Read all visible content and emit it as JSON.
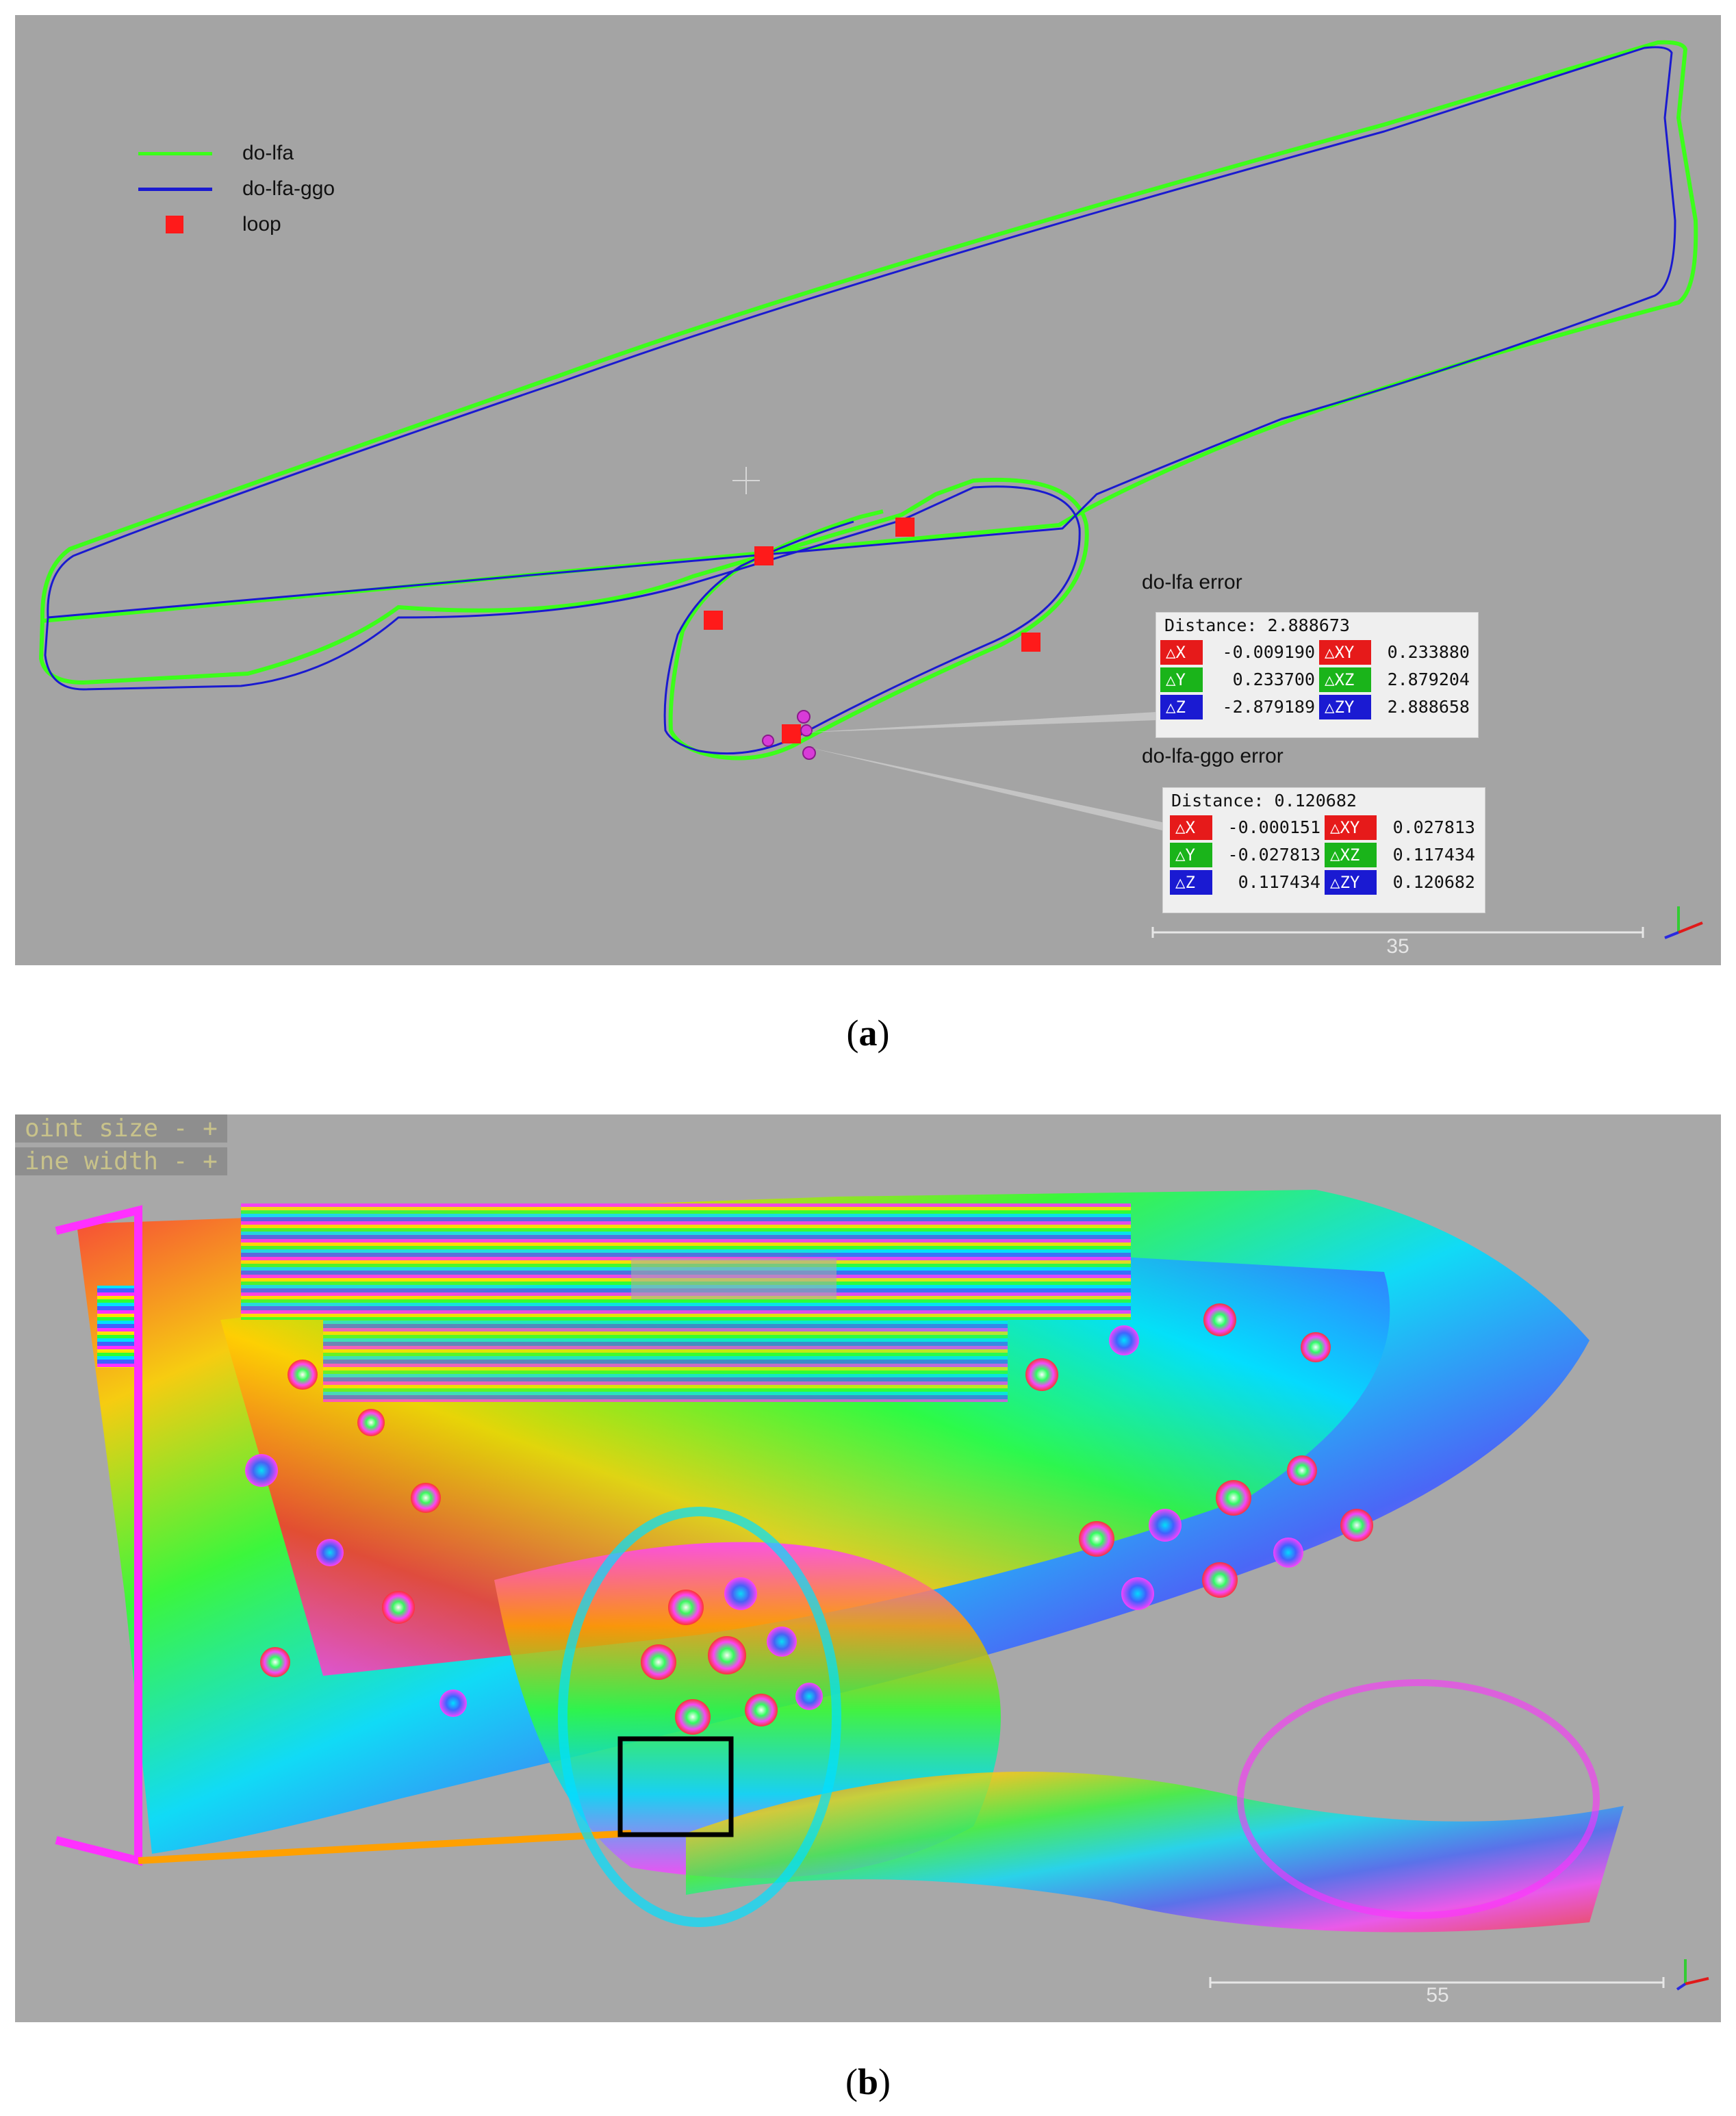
{
  "panel_a": {
    "legend": [
      {
        "label": "do-lfa",
        "color": "#3cff1a",
        "kind": "line"
      },
      {
        "label": "do-lfa-ggo",
        "color": "#1a1ad0",
        "kind": "line"
      },
      {
        "label": "loop",
        "color": "#ff1a1a",
        "kind": "square"
      }
    ],
    "error_panels": [
      {
        "title": "do-lfa error",
        "distance_label": "Distance: 2.888673",
        "rows": [
          {
            "l1": "△X",
            "v1": "-0.009190",
            "c1": "#e61a1a",
            "l2": "△XY",
            "v2": "0.233880",
            "c2": "#e61a1a"
          },
          {
            "l1": "△Y",
            "v1": "0.233700",
            "c1": "#1ab41a",
            "l2": "△XZ",
            "v2": "2.879204",
            "c2": "#1ab41a"
          },
          {
            "l1": "△Z",
            "v1": "-2.879189",
            "c1": "#1a1ad2",
            "l2": "△ZY",
            "v2": "2.888658",
            "c2": "#1a1ad2"
          }
        ]
      },
      {
        "title": "do-lfa-ggo error",
        "distance_label": "Distance: 0.120682",
        "rows": [
          {
            "l1": "△X",
            "v1": "-0.000151",
            "c1": "#e61a1a",
            "l2": "△XY",
            "v2": "0.027813",
            "c2": "#e61a1a"
          },
          {
            "l1": "△Y",
            "v1": "-0.027813",
            "c1": "#1ab41a",
            "l2": "△XZ",
            "v2": "0.117434",
            "c2": "#1ab41a"
          },
          {
            "l1": "△Z",
            "v1": "0.117434",
            "c1": "#1a1ad2",
            "l2": "△ZY",
            "v2": "0.120682",
            "c2": "#1a1ad2"
          }
        ]
      }
    ],
    "scale_label": "35",
    "caption_letter": "a"
  },
  "panel_b": {
    "overlay_lines": [
      "oint size - +",
      "ine width - +"
    ],
    "scale_label": "55",
    "caption_letter": "b"
  }
}
